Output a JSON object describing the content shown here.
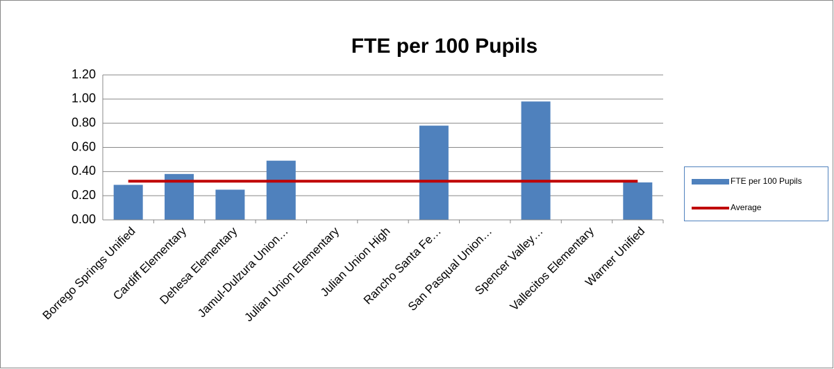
{
  "chart_data": {
    "type": "bar",
    "title": "FTE per 100 Pupils",
    "categories": [
      "Borrego Springs Unified",
      "Cardiff Elementary",
      "Dehesa Elementary",
      "Jamul-Dulzura Union…",
      "Julian Union Elementary",
      "Julian Union High",
      "Rancho Santa Fe…",
      "San Pasqual Union…",
      "Spencer Valley…",
      "Vallecitos Elementary",
      "Warner Unified"
    ],
    "series": [
      {
        "name": "FTE per 100 Pupils",
        "type": "bar",
        "color": "#4f81bd",
        "values": [
          0.29,
          0.38,
          0.25,
          0.49,
          0,
          0,
          0.78,
          0,
          0.98,
          0,
          0.31
        ]
      },
      {
        "name": "Average",
        "type": "line",
        "color": "#c00000",
        "values": [
          0.32,
          0.32,
          0.32,
          0.32,
          0.32,
          0.32,
          0.32,
          0.32,
          0.32,
          0.32,
          0.32
        ]
      }
    ],
    "ylim": [
      0,
      1.2
    ],
    "yticks": [
      {
        "value": 0,
        "label": "0.00"
      },
      {
        "value": 0.2,
        "label": "0.20"
      },
      {
        "value": 0.4,
        "label": "0.40"
      },
      {
        "value": 0.6,
        "label": "0.60"
      },
      {
        "value": 0.8,
        "label": "0.80"
      },
      {
        "value": 1,
        "label": "1.00"
      },
      {
        "value": 1.2,
        "label": "1.20"
      }
    ],
    "grid": true,
    "legend": "right"
  }
}
